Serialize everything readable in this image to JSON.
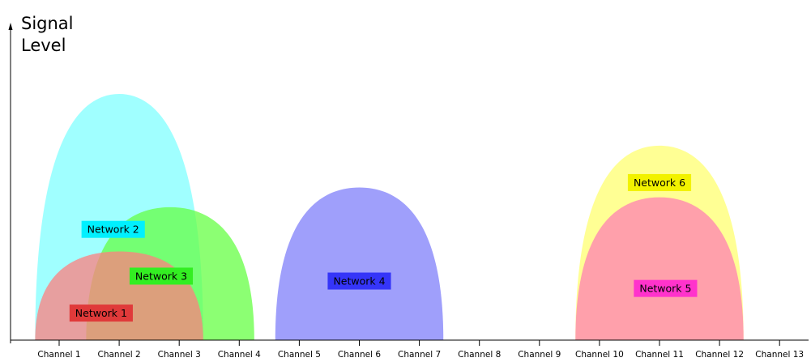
{
  "chart_data": {
    "type": "area",
    "title": "",
    "ylabel": "Signal\nLevel",
    "xlabel": "",
    "categories": [
      "Channel 1",
      "Channel 2",
      "Channel 3",
      "Channel 4",
      "Channel 5",
      "Channel 6",
      "Channel 7",
      "Channel 8",
      "Channel 9",
      "Channel 10",
      "Channel 11",
      "Channel 12",
      "Channel 13"
    ],
    "ylim": [
      0,
      100
    ],
    "grid": false,
    "series": [
      {
        "name": "Network 2",
        "center": 2,
        "width": 2.8,
        "level": 100,
        "color": "#80ffff",
        "label_color": "#00f0ff",
        "label_x": 1.9,
        "label_level": 45
      },
      {
        "name": "Network 3",
        "center": 2.85,
        "width": 2.8,
        "level": 54,
        "color": "#66ff44",
        "label_color": "#33ee22",
        "label_x": 2.7,
        "label_level": 26
      },
      {
        "name": "Network 1",
        "center": 2,
        "width": 2.8,
        "level": 36,
        "color": "#ff7f7f",
        "label_color": "#e03a3a",
        "label_x": 1.7,
        "label_level": 11
      },
      {
        "name": "Network 4",
        "center": 6,
        "width": 2.8,
        "level": 62,
        "color": "#7f7ffa",
        "label_color": "#3535f8",
        "label_x": 6,
        "label_level": 24
      },
      {
        "name": "Network 6",
        "center": 11,
        "width": 2.8,
        "level": 79,
        "color": "#ffff70",
        "label_color": "#f2f200",
        "label_x": 11,
        "label_level": 64
      },
      {
        "name": "Network 5",
        "center": 11,
        "width": 2.8,
        "level": 58,
        "color": "#ff80b3",
        "label_color": "#ff33cc",
        "label_x": 11.1,
        "label_level": 21
      }
    ]
  }
}
